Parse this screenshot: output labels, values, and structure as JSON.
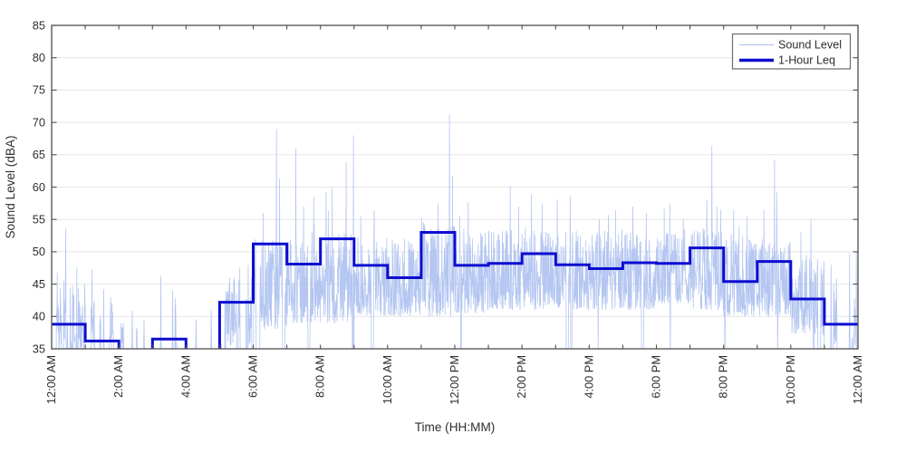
{
  "chart_data": {
    "type": "line",
    "title": "",
    "xlabel": "Time (HH:MM)",
    "ylabel": "Sound Level (dBA)",
    "xlim_hours": [
      0,
      24
    ],
    "ylim": [
      35,
      85
    ],
    "grid": "horizontal gridlines every 5 dBA",
    "x_tick_hours": [
      0,
      2,
      4,
      6,
      8,
      10,
      12,
      14,
      16,
      18,
      20,
      22,
      24
    ],
    "x_tick_labels": [
      "12:00 AM",
      "2:00 AM",
      "4:00 AM",
      "6:00 AM",
      "8:00 AM",
      "10:00 AM",
      "12:00 PM",
      "2:00 PM",
      "4:00 PM",
      "6:00 PM",
      "8:00 PM",
      "10:00 PM",
      "12:00 AM"
    ],
    "x_minor_tick_every_hours": 1,
    "y_ticks": [
      35,
      40,
      45,
      50,
      55,
      60,
      65,
      70,
      75,
      80,
      85
    ],
    "legend": {
      "position": "top-right",
      "entries": [
        {
          "label": "Sound Level",
          "color": "#b4c6f1",
          "line": "thin"
        },
        {
          "label": "1-Hour Leq",
          "color": "#0d0dd0",
          "line": "thick"
        }
      ]
    },
    "series": [
      {
        "name": "Sound Level",
        "type": "noisy-line",
        "color": "#b4c6f1",
        "description": "High-rate sound level trace over 24 h; quiet periods fall below the 35 dBA axis limit and are clipped; busy daytime band spans roughly 40-53 dBA.",
        "hourly_noise_model": [
          {
            "hour": 0,
            "density": 0.45,
            "base": 35.0,
            "spread": 10.0,
            "extra": 3
          },
          {
            "hour": 1,
            "density": 0.28,
            "base": 35.0,
            "spread": 9.0,
            "extra": 3
          },
          {
            "hour": 2,
            "density": 0.08,
            "base": 35.0,
            "spread": 5.0,
            "extra": 1
          },
          {
            "hour": 3,
            "density": 0.16,
            "base": 35.0,
            "spread": 8.5,
            "extra": 2
          },
          {
            "hour": 4,
            "density": 0.06,
            "base": 35.0,
            "spread": 5.0,
            "extra": 1
          },
          {
            "hour": 5,
            "density": 0.5,
            "base": 35.5,
            "spread": 11.0,
            "extra": 2
          },
          {
            "hour": 6,
            "density": 0.97,
            "base": 38.0,
            "spread": 14.0,
            "extra": 4
          },
          {
            "hour": 7,
            "density": 0.97,
            "base": 39.0,
            "spread": 13.0,
            "extra": 4
          },
          {
            "hour": 8,
            "density": 0.97,
            "base": 39.0,
            "spread": 14.0,
            "extra": 4
          },
          {
            "hour": 9,
            "density": 0.97,
            "base": 40.0,
            "spread": 12.5,
            "extra": 3
          },
          {
            "hour": 10,
            "density": 0.97,
            "base": 40.0,
            "spread": 12.0,
            "extra": 3
          },
          {
            "hour": 11,
            "density": 0.97,
            "base": 40.0,
            "spread": 14.0,
            "extra": 3
          },
          {
            "hour": 12,
            "density": 0.97,
            "base": 40.5,
            "spread": 12.5,
            "extra": 3
          },
          {
            "hour": 13,
            "density": 0.97,
            "base": 41.0,
            "spread": 12.5,
            "extra": 3
          },
          {
            "hour": 14,
            "density": 0.97,
            "base": 41.0,
            "spread": 13.0,
            "extra": 3
          },
          {
            "hour": 15,
            "density": 0.97,
            "base": 41.0,
            "spread": 12.5,
            "extra": 3
          },
          {
            "hour": 16,
            "density": 0.97,
            "base": 41.0,
            "spread": 12.5,
            "extra": 3
          },
          {
            "hour": 17,
            "density": 0.97,
            "base": 41.0,
            "spread": 12.5,
            "extra": 3
          },
          {
            "hour": 18,
            "density": 0.98,
            "base": 42.0,
            "spread": 12.0,
            "extra": 3
          },
          {
            "hour": 19,
            "density": 0.97,
            "base": 41.0,
            "spread": 13.0,
            "extra": 4
          },
          {
            "hour": 20,
            "density": 0.95,
            "base": 40.0,
            "spread": 12.0,
            "extra": 3
          },
          {
            "hour": 21,
            "density": 0.95,
            "base": 40.0,
            "spread": 12.5,
            "extra": 3
          },
          {
            "hour": 22,
            "density": 0.82,
            "base": 37.0,
            "spread": 12.0,
            "extra": 3
          },
          {
            "hour": 23,
            "density": 0.6,
            "base": 35.0,
            "spread": 11.0,
            "extra": 3
          }
        ],
        "peak_events_hour_dba": [
          [
            0.17,
            46.8
          ],
          [
            0.42,
            53.6
          ],
          [
            0.75,
            47.5
          ],
          [
            1.2,
            47.3
          ],
          [
            1.55,
            44.2
          ],
          [
            2.4,
            40.9
          ],
          [
            2.75,
            39.5
          ],
          [
            3.25,
            46.3
          ],
          [
            3.6,
            44.0
          ],
          [
            4.3,
            39.5
          ],
          [
            4.75,
            41.0
          ],
          [
            5.3,
            46.0
          ],
          [
            5.6,
            47.5
          ],
          [
            5.85,
            48.0
          ],
          [
            6.3,
            56.0
          ],
          [
            6.69,
            69.0
          ],
          [
            6.78,
            61.3
          ],
          [
            7.27,
            66.0
          ],
          [
            7.5,
            57.0
          ],
          [
            7.8,
            58.5
          ],
          [
            8.17,
            59.3
          ],
          [
            8.35,
            59.8
          ],
          [
            8.77,
            63.9
          ],
          [
            8.98,
            68.0
          ],
          [
            9.2,
            55.5
          ],
          [
            9.6,
            56.4
          ],
          [
            10.5,
            52.0
          ],
          [
            11.09,
            54.3
          ],
          [
            11.5,
            57.5
          ],
          [
            11.84,
            71.2
          ],
          [
            11.93,
            61.7
          ],
          [
            12.15,
            55.5
          ],
          [
            12.4,
            57.7
          ],
          [
            13.65,
            60.2
          ],
          [
            13.9,
            57.0
          ],
          [
            14.28,
            58.9
          ],
          [
            14.6,
            57.5
          ],
          [
            15.05,
            58.1
          ],
          [
            15.43,
            58.7
          ],
          [
            16.3,
            55.0
          ],
          [
            16.78,
            56.4
          ],
          [
            17.3,
            57.0
          ],
          [
            17.7,
            56.0
          ],
          [
            18.4,
            57.5
          ],
          [
            18.8,
            55.0
          ],
          [
            19.5,
            58.0
          ],
          [
            19.65,
            66.4
          ],
          [
            19.8,
            57.0
          ],
          [
            20.3,
            56.5
          ],
          [
            20.7,
            55.5
          ],
          [
            21.2,
            56.5
          ],
          [
            21.52,
            64.2
          ],
          [
            21.58,
            59.2
          ],
          [
            22.3,
            53.0
          ],
          [
            22.6,
            55.0
          ],
          [
            23.2,
            48.0
          ],
          [
            23.75,
            49.8
          ],
          [
            23.95,
            50.0
          ]
        ]
      },
      {
        "name": "1-Hour Leq",
        "type": "stairs",
        "color": "#0d0dd0",
        "hours": [
          0,
          1,
          2,
          3,
          4,
          5,
          6,
          7,
          8,
          9,
          10,
          11,
          12,
          13,
          14,
          15,
          16,
          17,
          18,
          19,
          20,
          21,
          22,
          23
        ],
        "values": [
          38.8,
          36.2,
          34.0,
          36.5,
          34.0,
          42.2,
          51.2,
          48.1,
          52.0,
          47.9,
          46.0,
          53.0,
          47.9,
          48.2,
          49.7,
          48.0,
          47.4,
          48.3,
          48.2,
          50.6,
          45.4,
          48.5,
          42.7,
          38.8
        ],
        "note": "hours 2 and 4 fall below the 35 dBA axis limit and are clipped"
      }
    ]
  },
  "colors": {
    "background": "#ffffff",
    "grid": "#e5e5e5",
    "axis_frame": "#4f4f4f",
    "text": "#2e2e2e",
    "sound_level_line": "#b4c6f1",
    "leq_line": "#0d0dd0",
    "legend_border": "#6b6b6b"
  }
}
